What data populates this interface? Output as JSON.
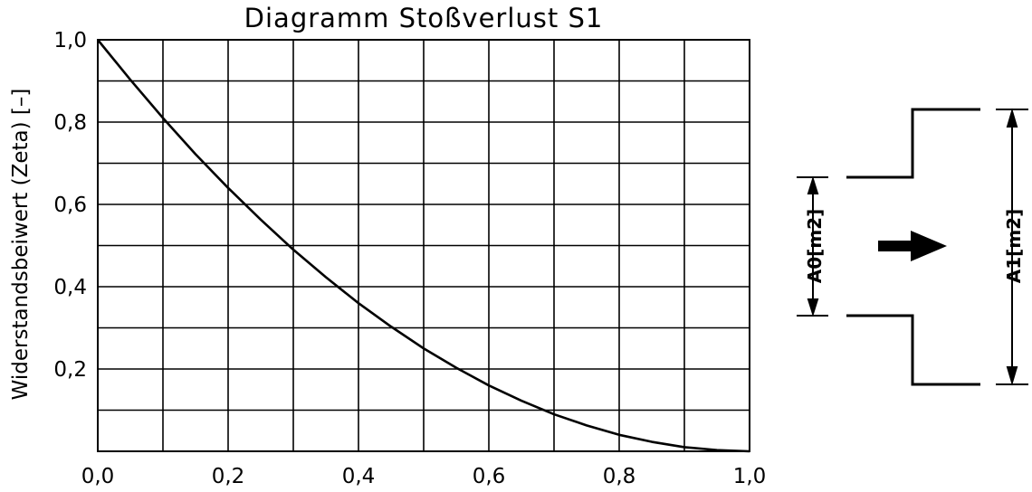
{
  "chart_data": {
    "type": "line",
    "title": "Diagramm Stoßverlust S1",
    "xlabel": "",
    "ylabel": "Widerstandsbeiwert (Zeta) [–]",
    "xlim": [
      0,
      1
    ],
    "ylim": [
      0,
      1
    ],
    "grid": true,
    "x_ticks": [
      "0,0",
      "0,2",
      "0,4",
      "0,6",
      "0,8",
      "1,0"
    ],
    "y_ticks": [
      "0,2",
      "0,4",
      "0,6",
      "0,8",
      "1,0"
    ],
    "series": [
      {
        "x": [
          0.0,
          0.05,
          0.1,
          0.15,
          0.2,
          0.25,
          0.3,
          0.35,
          0.4,
          0.45,
          0.5,
          0.55,
          0.6,
          0.65,
          0.7,
          0.75,
          0.8,
          0.85,
          0.9,
          0.95,
          1.0
        ],
        "y": [
          1.0,
          0.903,
          0.81,
          0.722,
          0.64,
          0.563,
          0.49,
          0.423,
          0.36,
          0.303,
          0.25,
          0.203,
          0.16,
          0.123,
          0.09,
          0.063,
          0.04,
          0.023,
          0.01,
          0.003,
          0.0
        ]
      }
    ]
  },
  "sketch": {
    "label_inlet": "A0[m2]",
    "label_outlet": "A1[m2]",
    "flow_arrow_icon": "arrow-right-icon"
  },
  "colors": {
    "line": "#000000",
    "background": "#ffffff"
  }
}
